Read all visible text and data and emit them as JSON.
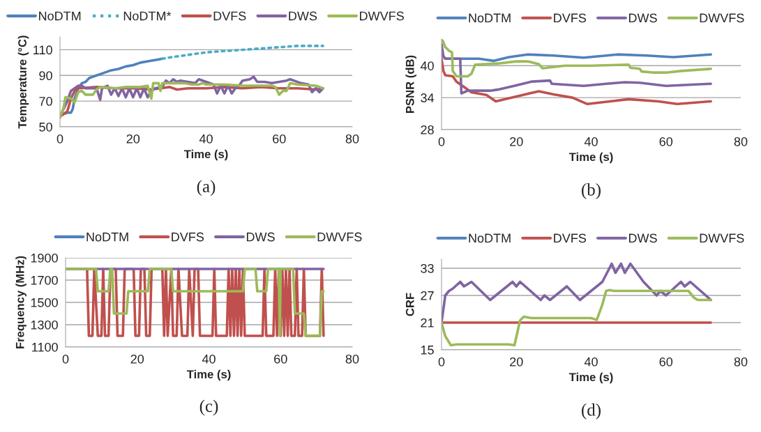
{
  "chart_data": [
    {
      "type": "line",
      "xlabel": "Time (s)",
      "ylabel": "Temperature (°C)",
      "annotations": [
        "(a)"
      ],
      "xlim": [
        0,
        80
      ],
      "xticks": [
        0,
        20,
        40,
        60,
        80
      ],
      "ylim": [
        50,
        120
      ],
      "yticks": [
        50,
        70,
        90,
        110
      ],
      "grid": "y",
      "legend": "top",
      "line_style": "solid",
      "series": [
        {
          "name": "NoDTM",
          "color": "#4f81bd",
          "x": [
            0,
            1,
            2,
            3,
            3.5,
            4,
            5,
            6,
            7,
            8,
            9,
            10,
            12,
            14,
            16,
            18,
            20,
            22,
            24,
            26,
            28
          ],
          "values": [
            58,
            60,
            61,
            61,
            64,
            72,
            80,
            84,
            85,
            88,
            89,
            90,
            92,
            94,
            95,
            97,
            98,
            100,
            101,
            102,
            103
          ]
        },
        {
          "name": "NoDTM*",
          "color": "#4bacc6",
          "line_style": "dotted",
          "x": [
            28,
            30,
            35,
            40,
            45,
            50,
            55,
            60,
            65,
            72
          ],
          "values": [
            103,
            104,
            106,
            108,
            109,
            110,
            111,
            112,
            113,
            113
          ]
        },
        {
          "name": "DVFS",
          "color": "#c0504d",
          "x": [
            0,
            2,
            3,
            4,
            5,
            10,
            15,
            20,
            25,
            30,
            32,
            35,
            40,
            45,
            50,
            55,
            60,
            65,
            70,
            72
          ],
          "values": [
            58,
            62,
            72,
            78,
            80,
            81,
            80,
            80,
            79,
            81,
            79,
            80,
            80,
            81,
            80,
            81,
            80,
            80,
            79,
            80
          ]
        },
        {
          "name": "DWS",
          "color": "#8064a2",
          "x": [
            0,
            2,
            3,
            4,
            5,
            6,
            7,
            10,
            11,
            11.5,
            13,
            14,
            15,
            16,
            17,
            18,
            19,
            20,
            21,
            22,
            23,
            24,
            25,
            26,
            28,
            29,
            30,
            31,
            32,
            33,
            35,
            37,
            38,
            40,
            42,
            43,
            44,
            45,
            46,
            47,
            48,
            49,
            50,
            52,
            53,
            54,
            56,
            58,
            60,
            62,
            63,
            64,
            66,
            68,
            69,
            70,
            71,
            72
          ],
          "values": [
            58,
            70,
            78,
            80,
            82,
            82,
            80,
            80,
            71,
            80,
            82,
            75,
            80,
            74,
            80,
            73,
            80,
            73,
            80,
            73,
            80,
            73,
            78,
            80,
            81,
            86,
            84,
            87,
            85,
            86,
            85,
            84,
            87,
            85,
            83,
            76,
            82,
            76,
            82,
            76,
            80,
            82,
            86,
            87,
            89,
            85,
            85,
            84,
            85,
            86,
            87,
            86,
            84,
            83,
            77,
            80,
            77,
            80
          ]
        },
        {
          "name": "DWVFS",
          "color": "#9bbb59",
          "x": [
            0,
            1,
            1.5,
            3,
            4,
            5,
            6,
            7,
            9,
            10,
            11,
            15,
            18,
            22,
            24,
            25,
            25.5,
            27,
            27.5,
            28,
            34,
            36,
            38,
            39,
            40,
            45,
            50,
            55,
            58,
            59,
            60,
            61,
            62,
            63,
            65,
            70,
            72
          ],
          "values": [
            57,
            65,
            73,
            72,
            69,
            77,
            78,
            75,
            75,
            79,
            81,
            80,
            81,
            81,
            82,
            72,
            84,
            84,
            78,
            84,
            84,
            83,
            83,
            84,
            83,
            83,
            82,
            82,
            82,
            81,
            75,
            78,
            78,
            84,
            83,
            82,
            80
          ]
        }
      ]
    },
    {
      "type": "line",
      "xlabel": "Time (s)",
      "ylabel": "PSNR (dB)",
      "annotations": [
        "(b)"
      ],
      "xlim": [
        0,
        80
      ],
      "xticks": [
        0,
        20,
        40,
        60,
        80
      ],
      "ylim": [
        28,
        45
      ],
      "yticks": [
        28,
        34,
        40
      ],
      "grid": "y",
      "legend": "top",
      "line_style": "solid",
      "series": [
        {
          "name": "NoDTM",
          "color": "#4f81bd",
          "x": [
            0,
            1,
            5,
            10,
            14,
            18,
            23,
            30,
            38,
            47,
            55,
            62,
            72
          ],
          "values": [
            42,
            41.3,
            41.3,
            41.3,
            40.9,
            41.6,
            42.1,
            41.9,
            41.5,
            42.1,
            41.9,
            41.6,
            42.1
          ]
        },
        {
          "name": "DVFS",
          "color": "#c0504d",
          "x": [
            0,
            0.5,
            1,
            3,
            4,
            6,
            8,
            12,
            14.5,
            20,
            26,
            30,
            35,
            39,
            45,
            50,
            58,
            63,
            72
          ],
          "values": [
            41.3,
            39,
            38.2,
            38,
            37,
            36,
            35,
            34.5,
            33.3,
            34.2,
            35.2,
            34.6,
            34,
            32.8,
            33.3,
            33.7,
            33.3,
            32.8,
            33.3
          ]
        },
        {
          "name": "DWS",
          "color": "#8064a2",
          "x": [
            0,
            0.5,
            1,
            5,
            5.3,
            7,
            13,
            15,
            20,
            24,
            29,
            29.5,
            38,
            44,
            49,
            53,
            60,
            72
          ],
          "values": [
            44,
            41.8,
            41.3,
            41.3,
            34.8,
            35.3,
            35.3,
            35.5,
            36.3,
            37,
            37.2,
            36.6,
            36.2,
            36.6,
            36.9,
            36.8,
            36.2,
            36.6
          ]
        },
        {
          "name": "DWVFS",
          "color": "#9bbb59",
          "x": [
            0,
            0.3,
            1,
            2,
            2.8,
            3,
            4,
            7,
            8,
            9,
            15,
            20,
            23,
            26,
            27,
            33,
            40,
            50,
            50.5,
            53,
            53.5,
            57,
            60,
            64,
            72
          ],
          "values": [
            44.8,
            44.7,
            43.5,
            42.8,
            42.5,
            39,
            38,
            38,
            38.5,
            40.2,
            40.4,
            40.8,
            40.8,
            40.3,
            39.5,
            40,
            40,
            40.2,
            39.6,
            39.4,
            38.9,
            38.7,
            38.7,
            39,
            39.4
          ]
        }
      ]
    },
    {
      "type": "line",
      "xlabel": "Time (s)",
      "ylabel": "Frequency (MHz)",
      "annotations": [
        "(c)"
      ],
      "xlim": [
        0,
        80
      ],
      "xticks": [
        0,
        20,
        40,
        60,
        80
      ],
      "ylim": [
        1100,
        1900
      ],
      "yticks": [
        1100,
        1300,
        1500,
        1700,
        1900
      ],
      "grid": "y",
      "legend": "top",
      "line_style": "solid",
      "series": [
        {
          "name": "NoDTM",
          "color": "#4f81bd"
        },
        {
          "name": "DVFS",
          "color": "#c0504d",
          "x": [
            0,
            6,
            6.5,
            7.5,
            8,
            9,
            10,
            10.5,
            11,
            12,
            12.5,
            14,
            14.5,
            16,
            16.5,
            19,
            19.5,
            20.5,
            21,
            22,
            22.5,
            23.5,
            24,
            27,
            27.5,
            28,
            28.5,
            29.5,
            30,
            31,
            31.5,
            32.5,
            34,
            34.5,
            35.5,
            36,
            37,
            37.5,
            41,
            41.5,
            42,
            45,
            45.5,
            46,
            46.5,
            47,
            47.5,
            48,
            48.5,
            49,
            49.5,
            50,
            55,
            55.5,
            56,
            58,
            58.5,
            59,
            59.5,
            60,
            60.5,
            61,
            61.5,
            62,
            62.5,
            63,
            64,
            64.5,
            65,
            66,
            66.5,
            67,
            71,
            71.5,
            72
          ],
          "values": [
            1800,
            1800,
            1200,
            1200,
            1800,
            1200,
            1200,
            1800,
            1200,
            1200,
            1800,
            1800,
            1200,
            1200,
            1800,
            1800,
            1200,
            1200,
            1800,
            1800,
            1200,
            1200,
            1800,
            1800,
            1200,
            1800,
            1200,
            1800,
            1200,
            1200,
            1800,
            1200,
            1200,
            1800,
            1200,
            1800,
            1800,
            1200,
            1200,
            1800,
            1200,
            1200,
            1800,
            1200,
            1800,
            1200,
            1800,
            1200,
            1800,
            1200,
            1800,
            1200,
            1200,
            1800,
            1200,
            1200,
            1800,
            1200,
            1800,
            1200,
            1800,
            1200,
            1800,
            1200,
            1800,
            1200,
            1200,
            1800,
            1200,
            1200,
            1800,
            1200,
            1200,
            1800,
            1200
          ]
        },
        {
          "name": "DWS",
          "color": "#8064a2",
          "x": [
            0,
            72
          ],
          "values": [
            1800,
            1800
          ]
        },
        {
          "name": "DWVFS",
          "color": "#9bbb59",
          "x": [
            0,
            8.5,
            9,
            12,
            12.5,
            13,
            13.5,
            17,
            17.5,
            23,
            23.5,
            29.5,
            30,
            49.5,
            50,
            53,
            53.5,
            56,
            56.5,
            59.5,
            59.8,
            60,
            63.5,
            64,
            66.5,
            67,
            71,
            71.5,
            72
          ],
          "values": [
            1800,
            1800,
            1600,
            1600,
            1800,
            1800,
            1400,
            1400,
            1600,
            1600,
            1800,
            1800,
            1600,
            1600,
            1800,
            1800,
            1600,
            1600,
            1800,
            1800,
            1200,
            1800,
            1800,
            1400,
            1400,
            1200,
            1200,
            1600,
            1600
          ]
        }
      ]
    },
    {
      "type": "line",
      "xlabel": "Time (s)",
      "ylabel": "CRF",
      "annotations": [
        "(d)"
      ],
      "xlim": [
        0,
        80
      ],
      "xticks": [
        0,
        20,
        40,
        60,
        80
      ],
      "ylim": [
        15,
        35
      ],
      "yticks": [
        15,
        21,
        27,
        33
      ],
      "grid": "y",
      "legend": "top",
      "line_style": "solid",
      "series": [
        {
          "name": "NoDTM",
          "color": "#4f81bd"
        },
        {
          "name": "DVFS",
          "color": "#c0504d",
          "x": [
            0,
            72
          ],
          "values": [
            21,
            21
          ]
        },
        {
          "name": "DWS",
          "color": "#8064a2",
          "x": [
            0,
            1,
            2,
            3,
            5,
            6,
            8,
            13,
            19,
            20,
            21,
            26.5,
            27.5,
            29,
            33.5,
            37,
            43,
            45.5,
            46.5,
            48,
            49,
            50.5,
            54,
            57.5,
            58.5,
            60,
            64,
            65,
            66.5,
            72
          ],
          "values": [
            21,
            27,
            28,
            28.5,
            30,
            29,
            30,
            26,
            30,
            29,
            30,
            26,
            27,
            26,
            29,
            26,
            30,
            34,
            32,
            34,
            32,
            34,
            30,
            27,
            28,
            27,
            30,
            29,
            30,
            26
          ]
        },
        {
          "name": "DWVFS",
          "color": "#9bbb59",
          "x": [
            0,
            1,
            2.5,
            4,
            18,
            19.5,
            21,
            22,
            24,
            40,
            41.5,
            43,
            44,
            45,
            46,
            64,
            66,
            67.5,
            68.5,
            72
          ],
          "values": [
            21,
            18,
            16,
            16.2,
            16.2,
            16,
            21.5,
            22.3,
            22,
            22,
            21.6,
            25,
            28,
            28.2,
            28,
            28,
            28,
            26.5,
            26,
            26
          ]
        }
      ]
    }
  ]
}
